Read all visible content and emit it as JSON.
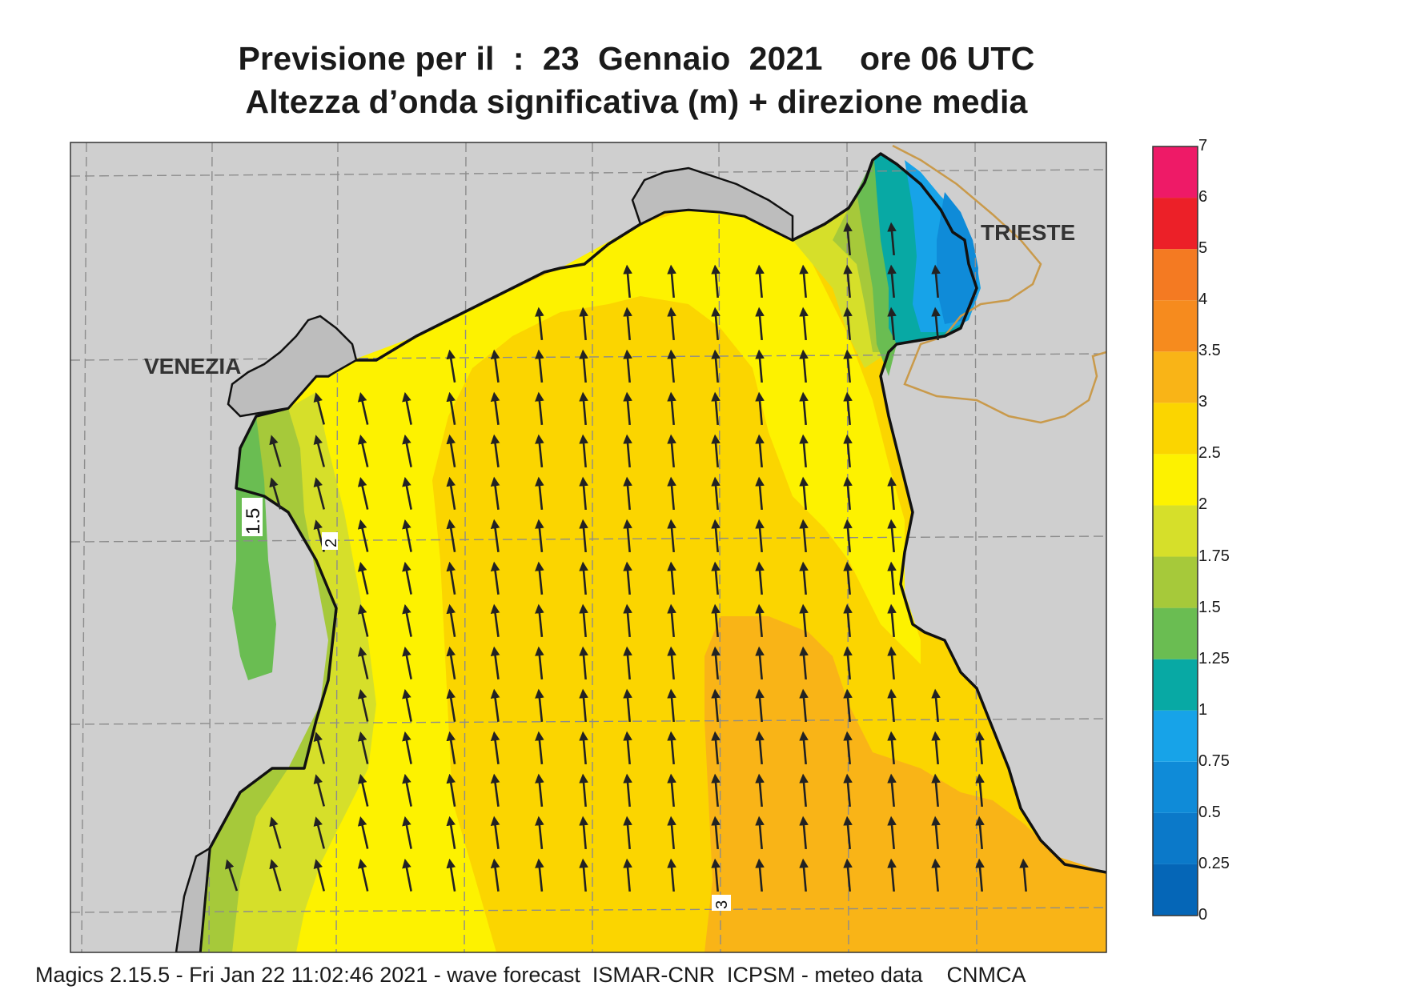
{
  "title": {
    "line1": "Previsione per il  :  23  Gennaio  2021    ore 06 UTC",
    "line2": "Altezza d’onda significativa (m) + direzione media"
  },
  "map": {
    "places": [
      "VENEZIA",
      "TRIESTE"
    ],
    "contour_labels": [
      "1.5",
      "2",
      "3"
    ],
    "colors": {
      "land": "#cfcfcf",
      "grid": "#8c8c8c",
      "coast": "#111111",
      "border": "#c99a4b",
      "arrow": "#222222"
    },
    "wave_direction": "north-northwest"
  },
  "legend": {
    "unit": "m",
    "levels": [
      "0",
      "0.25",
      "0.5",
      "0.75",
      "1",
      "1.25",
      "1.5",
      "1.75",
      "2",
      "2.5",
      "3",
      "3.5",
      "4",
      "5",
      "6",
      "7"
    ],
    "colors": [
      "#0566b7",
      "#0b79c9",
      "#0f8bd8",
      "#17a3e8",
      "#08a9a4",
      "#6abd52",
      "#a6c93a",
      "#d6df2a",
      "#fdf200",
      "#fbd500",
      "#f9b417",
      "#f68b1e",
      "#f47a22",
      "#ec2028",
      "#ee1a67"
    ]
  },
  "footer": "Magics 2.15.5 - Fri Jan 22 11:02:46 2021 - wave forecast  ISMAR-CNR  ICPSM - meteo data    CNMCA"
}
